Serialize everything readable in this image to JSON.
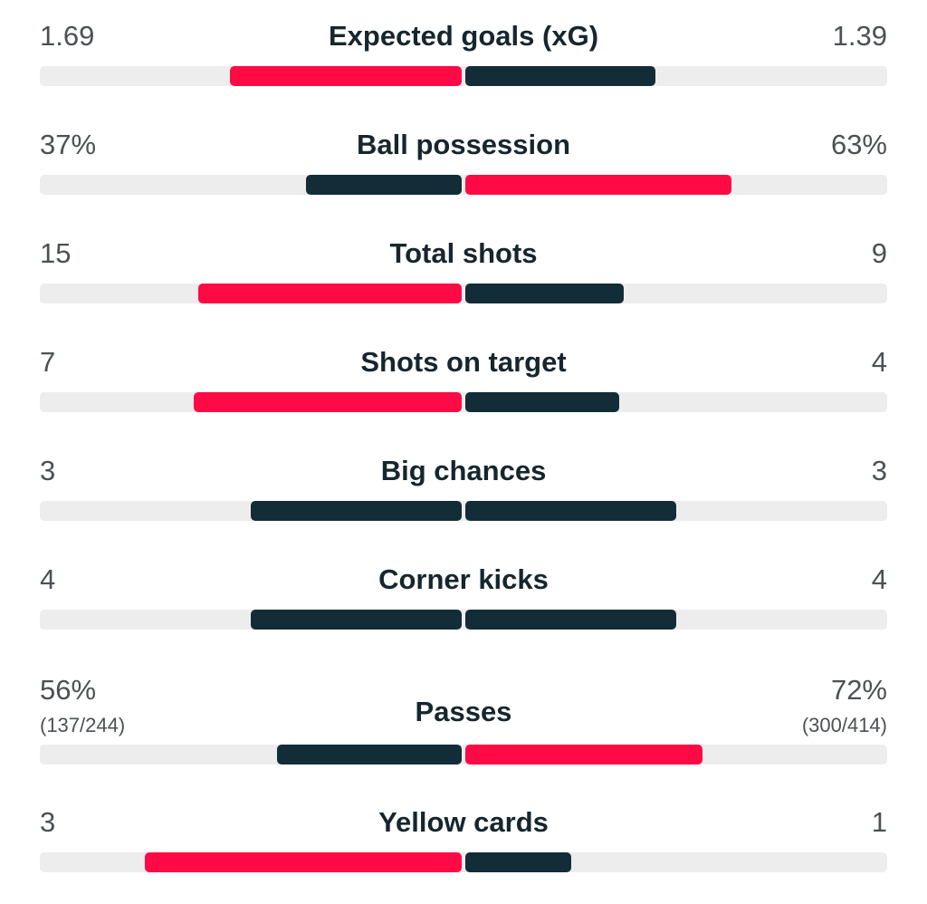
{
  "colors": {
    "highlight": "#ff0a45",
    "neutral": "#132d38",
    "track": "#ededed",
    "label": "#16262e",
    "value": "#4b5154"
  },
  "stats": [
    {
      "label": "Expected goals (xG)",
      "home": "1.69",
      "away": "1.39",
      "home_share": 0.55,
      "away_share": 0.45,
      "home_color": "highlight",
      "away_color": "neutral"
    },
    {
      "label": "Ball possession",
      "home": "37%",
      "away": "63%",
      "home_share": 0.37,
      "away_share": 0.63,
      "home_color": "neutral",
      "away_color": "highlight"
    },
    {
      "label": "Total shots",
      "home": "15",
      "away": "9",
      "home_share": 0.625,
      "away_share": 0.375,
      "home_color": "highlight",
      "away_color": "neutral"
    },
    {
      "label": "Shots on target",
      "home": "7",
      "away": "4",
      "home_share": 0.636,
      "away_share": 0.364,
      "home_color": "highlight",
      "away_color": "neutral"
    },
    {
      "label": "Big chances",
      "home": "3",
      "away": "3",
      "home_share": 0.5,
      "away_share": 0.5,
      "home_color": "neutral",
      "away_color": "neutral"
    },
    {
      "label": "Corner kicks",
      "home": "4",
      "away": "4",
      "home_share": 0.5,
      "away_share": 0.5,
      "home_color": "neutral",
      "away_color": "neutral"
    },
    {
      "label": "Passes",
      "home": "56%",
      "away": "72%",
      "home_sub": "(137/244)",
      "away_sub": "(300/414)",
      "home_share": 0.437,
      "away_share": 0.563,
      "home_color": "neutral",
      "away_color": "highlight"
    },
    {
      "label": "Yellow cards",
      "home": "3",
      "away": "1",
      "home_share": 0.75,
      "away_share": 0.25,
      "home_color": "highlight",
      "away_color": "neutral"
    }
  ]
}
